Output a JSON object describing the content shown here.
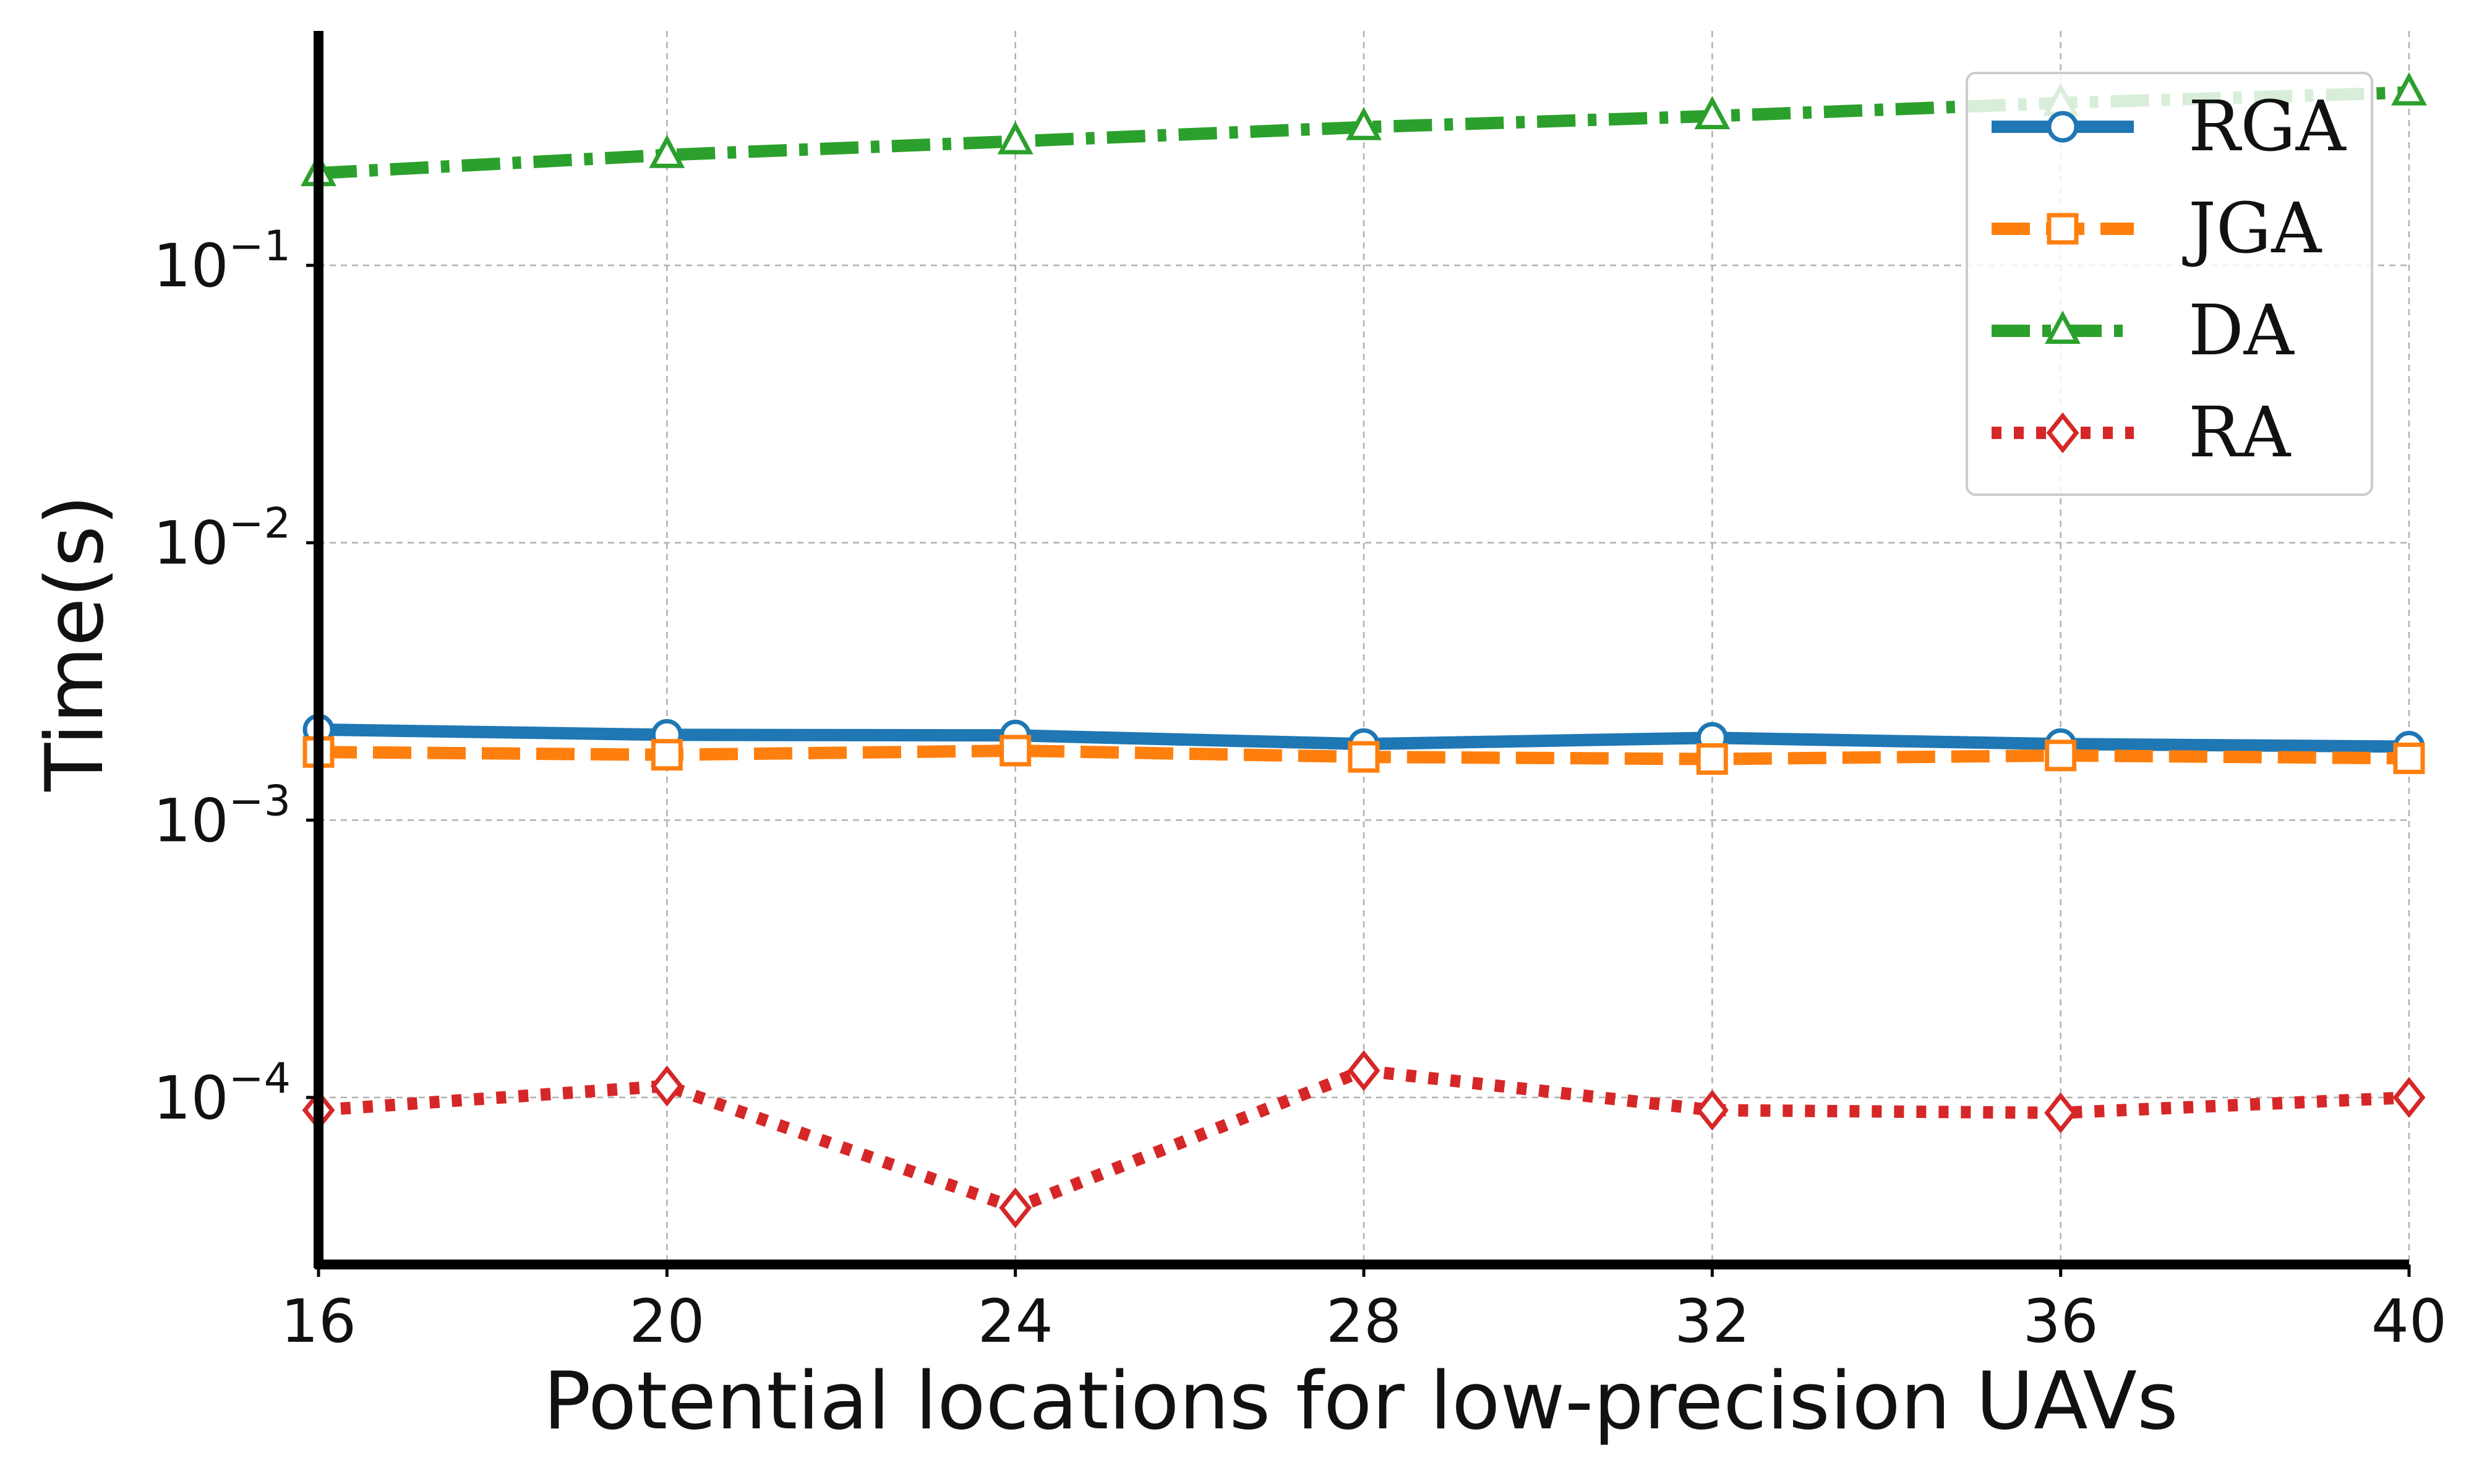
{
  "chart_data": {
    "type": "line",
    "xlabel": "Potential locations for low-precision UAVs",
    "ylabel": "Time(s)",
    "x": [
      16,
      20,
      24,
      28,
      32,
      36,
      40
    ],
    "xticks": [
      "16",
      "20",
      "24",
      "28",
      "32",
      "36",
      "40"
    ],
    "xlim": [
      16,
      40
    ],
    "yscale": "log",
    "ylim": [
      2.5e-05,
      0.7
    ],
    "yticks": [
      {
        "value": 0.0001,
        "mantissa": "10",
        "exponent": "−4"
      },
      {
        "value": 0.001,
        "mantissa": "10",
        "exponent": "−3"
      },
      {
        "value": 0.01,
        "mantissa": "10",
        "exponent": "−2"
      },
      {
        "value": 0.1,
        "mantissa": "10",
        "exponent": "−1"
      }
    ],
    "grid": true,
    "legend_position": "top-right",
    "series": [
      {
        "name": "RGA",
        "color": "#1f77b4",
        "marker": "circle",
        "linestyle": "solid",
        "values": [
          0.00212,
          0.00203,
          0.00202,
          0.00188,
          0.00198,
          0.00188,
          0.00184
        ]
      },
      {
        "name": "JGA",
        "color": "#ff7f0e",
        "marker": "square",
        "linestyle": "dashed",
        "values": [
          0.00176,
          0.00172,
          0.00178,
          0.00169,
          0.00166,
          0.00171,
          0.00167
        ]
      },
      {
        "name": "DA",
        "color": "#2ca02c",
        "marker": "triangle",
        "linestyle": "dashdot",
        "values": [
          0.215,
          0.25,
          0.28,
          0.315,
          0.345,
          0.385,
          0.42
        ]
      },
      {
        "name": "RA",
        "color": "#d62728",
        "marker": "diamond",
        "linestyle": "dotted",
        "values": [
          9e-05,
          0.00011,
          4e-05,
          0.000125,
          9e-05,
          8.8e-05,
          0.0001
        ]
      }
    ]
  }
}
